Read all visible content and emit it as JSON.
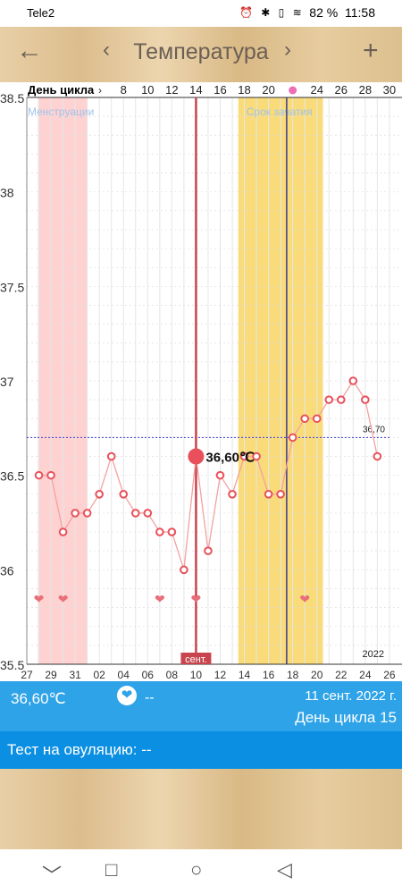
{
  "status": {
    "carrier": "Tele2",
    "battery": "82 %",
    "time": "11:58",
    "icons": "⏰ ✱ ▯ ≋"
  },
  "header": {
    "title": "Температура",
    "back_icon": "arrow-left-icon",
    "prev_icon": "chevron-left-icon",
    "next_icon": "chevron-right-icon",
    "add_icon": "plus-icon"
  },
  "chart_data": {
    "type": "line",
    "top_axis_label": "День цикла",
    "top_axis_arrow": "›",
    "cycle_days": [
      8,
      10,
      12,
      14,
      16,
      18,
      20,
      24,
      26,
      28,
      30
    ],
    "ovulation_day": 22,
    "y_ticks": [
      "38.5",
      "38",
      "37.5",
      "37",
      "36.5",
      "36",
      "35.5"
    ],
    "ylim": [
      35.5,
      38.5
    ],
    "x_ticks": [
      "27",
      "29",
      "31",
      "02",
      "04",
      "06",
      "08",
      "10",
      "12",
      "14",
      "16",
      "18",
      "20",
      "22",
      "24",
      "26"
    ],
    "x_tick_days": [
      27,
      29,
      31,
      33,
      35,
      37,
      39,
      41,
      43,
      45,
      47,
      49,
      51,
      53,
      55,
      57
    ],
    "xlim": [
      27,
      57.05
    ],
    "points": [
      {
        "x": 28,
        "y": 36.5
      },
      {
        "x": 29,
        "y": 36.5
      },
      {
        "x": 30,
        "y": 36.2
      },
      {
        "x": 31,
        "y": 36.3
      },
      {
        "x": 32,
        "y": 36.3
      },
      {
        "x": 33,
        "y": 36.4
      },
      {
        "x": 34,
        "y": 36.6
      },
      {
        "x": 35,
        "y": 36.4
      },
      {
        "x": 36,
        "y": 36.3
      },
      {
        "x": 37,
        "y": 36.3
      },
      {
        "x": 38,
        "y": 36.2
      },
      {
        "x": 39,
        "y": 36.2
      },
      {
        "x": 40,
        "y": 36.0
      },
      {
        "x": 41,
        "y": 36.6
      },
      {
        "x": 42,
        "y": 36.1
      },
      {
        "x": 43,
        "y": 36.5
      },
      {
        "x": 44,
        "y": 36.4
      },
      {
        "x": 45,
        "y": 36.6
      },
      {
        "x": 46,
        "y": 36.6
      },
      {
        "x": 47,
        "y": 36.4
      },
      {
        "x": 48,
        "y": 36.4
      },
      {
        "x": 49,
        "y": 36.7
      },
      {
        "x": 50,
        "y": 36.8
      },
      {
        "x": 51,
        "y": 36.8
      },
      {
        "x": 52,
        "y": 36.9
      },
      {
        "x": 53,
        "y": 36.9
      },
      {
        "x": 54,
        "y": 37.0
      },
      {
        "x": 55,
        "y": 36.9
      },
      {
        "x": 56,
        "y": 36.6
      }
    ],
    "selected": {
      "x": 41,
      "y": 36.6,
      "label": "36,60℃"
    },
    "coverline": {
      "y": 36.7,
      "label": "36,70"
    },
    "menstruation": {
      "from": 28,
      "to": 32,
      "label": "Менструации"
    },
    "fertile": {
      "from": 44.5,
      "to": 51.5,
      "label": "Срок зачатия"
    },
    "ovulation_line": 48.5,
    "hearts": [
      28,
      30,
      38,
      41,
      50
    ],
    "month_label": "сент.",
    "year_label": "2022",
    "colors": {
      "menstruation": "#ffd2d2",
      "fertile": "#f9db7a",
      "line": "#f4a1a1",
      "marker": "#e8515b",
      "selected_line": "#c8454f",
      "ovulation": "#3a3a8c",
      "coverline": "#3b3bd6"
    }
  },
  "info": {
    "temperature": "36,60℃",
    "heart_value": "--",
    "heart_icon": "heart-icon",
    "date": "11 сент. 2022 г.",
    "cycle_day": "День цикла 15"
  },
  "test": {
    "label": "Тест на овуляцию: --"
  },
  "nav": {
    "back": "▽",
    "home": "○",
    "recent": "□"
  }
}
